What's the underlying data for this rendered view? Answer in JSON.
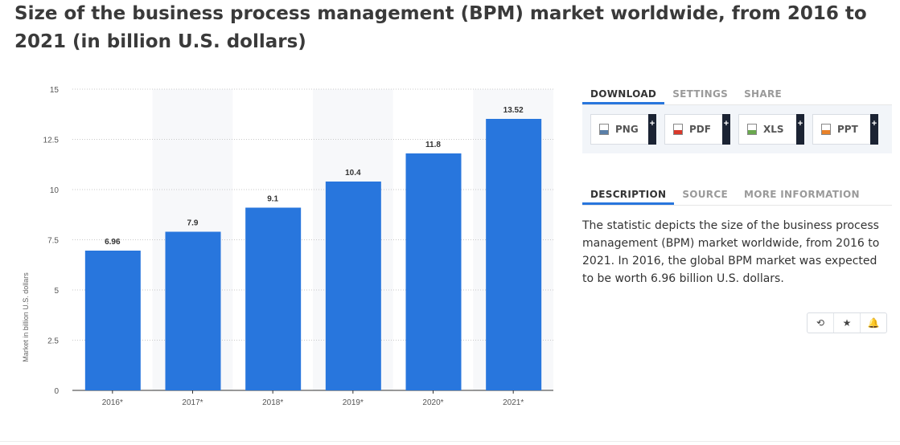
{
  "title": "Size of the business process management (BPM) market worldwide, from 2016 to 2021 (in billion U.S. dollars)",
  "chart_data": {
    "type": "bar",
    "categories": [
      "2016*",
      "2017*",
      "2018*",
      "2019*",
      "2020*",
      "2021*"
    ],
    "values": [
      6.96,
      7.9,
      9.1,
      10.4,
      11.8,
      13.52
    ],
    "value_labels": [
      "6.96",
      "7.9",
      "9.1",
      "10.4",
      "11.8",
      "13.52"
    ],
    "yticks": [
      "0",
      "2.5",
      "5",
      "7.5",
      "10",
      "12.5",
      "15"
    ],
    "ytick_values": [
      0,
      2.5,
      5,
      7.5,
      10,
      12.5,
      15
    ],
    "ylim": [
      0,
      15
    ],
    "ylabel": "Market in billion U.S. dollars",
    "xlabel": "",
    "grid": true,
    "bar_color": "#2876dd"
  },
  "panel": {
    "tabs": [
      "DOWNLOAD",
      "SETTINGS",
      "SHARE"
    ],
    "downloads": [
      {
        "label": "PNG",
        "plus": "+",
        "icon": "png-file-icon",
        "color": "#5b7fa8"
      },
      {
        "label": "PDF",
        "plus": "+",
        "icon": "pdf-file-icon",
        "color": "#d9392b"
      },
      {
        "label": "XLS",
        "plus": "+",
        "icon": "xls-file-icon",
        "color": "#6aa84f"
      },
      {
        "label": "PPT",
        "plus": "+",
        "icon": "ppt-file-icon",
        "color": "#e8822a"
      }
    ],
    "info_tabs": [
      "DESCRIPTION",
      "SOURCE",
      "MORE INFORMATION"
    ],
    "description": "The statistic depicts the size of the business process management (BPM) market worldwide, from 2016 to 2021. In 2016, the global BPM market was expected to be worth 6.96 billion U.S. dollars.",
    "actions": [
      {
        "icon": "history-icon",
        "glyph": "⟲"
      },
      {
        "icon": "star-icon",
        "glyph": "★"
      },
      {
        "icon": "bell-icon",
        "glyph": "🔔"
      }
    ]
  },
  "colors": {
    "accent": "#2876dd",
    "dark": "#1b2333"
  }
}
